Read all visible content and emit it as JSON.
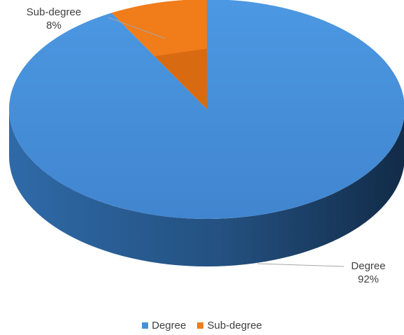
{
  "chart_data": {
    "type": "pie",
    "categories": [
      "Degree",
      "Sub-degree"
    ],
    "values": [
      92,
      8
    ],
    "labels": [
      {
        "name": "Degree",
        "percent": "92%"
      },
      {
        "name": "Sub-degree",
        "percent": "8%"
      }
    ],
    "colors": {
      "Degree": "#4a90d9",
      "Sub-degree": "#f07c1a"
    },
    "legend": {
      "position": "bottom",
      "entries": [
        "Degree",
        "Sub-degree"
      ]
    },
    "style": "3d"
  }
}
